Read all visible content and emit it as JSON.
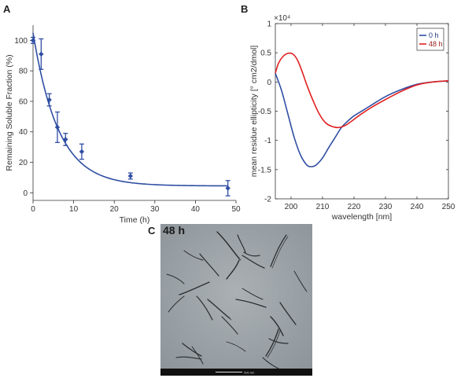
{
  "panels": {
    "a_letter": "A",
    "b_letter": "B",
    "c_letter": "C",
    "c_label": "48 h",
    "scale_bar_label": "200 nm"
  },
  "chart_data": [
    {
      "type": "scatter",
      "panel": "A",
      "xlabel": "Time (h)",
      "ylabel": "Remaining Soluble Fraction (%)",
      "xlim": [
        0,
        50
      ],
      "ylim": [
        -5,
        110
      ],
      "xticks": [
        0,
        10,
        20,
        30,
        40,
        50
      ],
      "yticks": [
        0,
        20,
        40,
        60,
        80,
        100
      ],
      "grid": false,
      "series": [
        {
          "color": "#2f4ea3",
          "points": [
            {
              "x": 0,
              "y": 100,
              "err": 2
            },
            {
              "x": 2,
              "y": 91,
              "err": 10
            },
            {
              "x": 4,
              "y": 61,
              "err": 4
            },
            {
              "x": 6,
              "y": 43,
              "err": 10
            },
            {
              "x": 8,
              "y": 35,
              "err": 4
            },
            {
              "x": 12,
              "y": 27,
              "err": 5
            },
            {
              "x": 24,
              "y": 11,
              "err": 2
            },
            {
              "x": 48,
              "y": 3,
              "err": 5
            }
          ]
        }
      ],
      "fit": {
        "color": "#2f4ea3",
        "y0": 105,
        "plateau": 4.5,
        "k": 0.16
      }
    },
    {
      "type": "line",
      "panel": "B",
      "xlabel": "wavelength [nm]",
      "ylabel": "mean residue ellipticity [° cm2/dmol]",
      "y_multiplier": "×10⁴",
      "xlim": [
        195,
        250
      ],
      "ylim": [
        -2,
        1
      ],
      "xticks": [
        200,
        210,
        220,
        230,
        240,
        250
      ],
      "yticks": [
        -2,
        -1.5,
        -1,
        -0.5,
        0,
        0.5,
        1
      ],
      "grid": false,
      "legend_position": "top-right",
      "series": [
        {
          "name": "0 h",
          "color": "#2f4ea3",
          "x": [
            195,
            197,
            199,
            201,
            203,
            205,
            206.5,
            208,
            210,
            212,
            214,
            216,
            218,
            220,
            223,
            226,
            230,
            235,
            240,
            245,
            250
          ],
          "y": [
            0.15,
            -0.15,
            -0.55,
            -0.95,
            -1.25,
            -1.42,
            -1.45,
            -1.42,
            -1.3,
            -1.12,
            -0.95,
            -0.78,
            -0.67,
            -0.58,
            -0.48,
            -0.38,
            -0.25,
            -0.13,
            -0.04,
            0,
            0.02
          ]
        },
        {
          "name": "48 h",
          "color": "#e02020",
          "x": [
            195,
            196,
            197.5,
            199,
            200.5,
            202,
            203.5,
            205,
            207,
            209,
            211,
            213,
            215,
            217,
            219,
            222,
            226,
            230,
            235,
            240,
            245,
            250
          ],
          "y": [
            0.15,
            0.32,
            0.44,
            0.49,
            0.48,
            0.38,
            0.18,
            -0.05,
            -0.32,
            -0.55,
            -0.7,
            -0.76,
            -0.78,
            -0.75,
            -0.68,
            -0.56,
            -0.42,
            -0.3,
            -0.16,
            -0.05,
            0,
            0.02
          ]
        }
      ]
    }
  ]
}
